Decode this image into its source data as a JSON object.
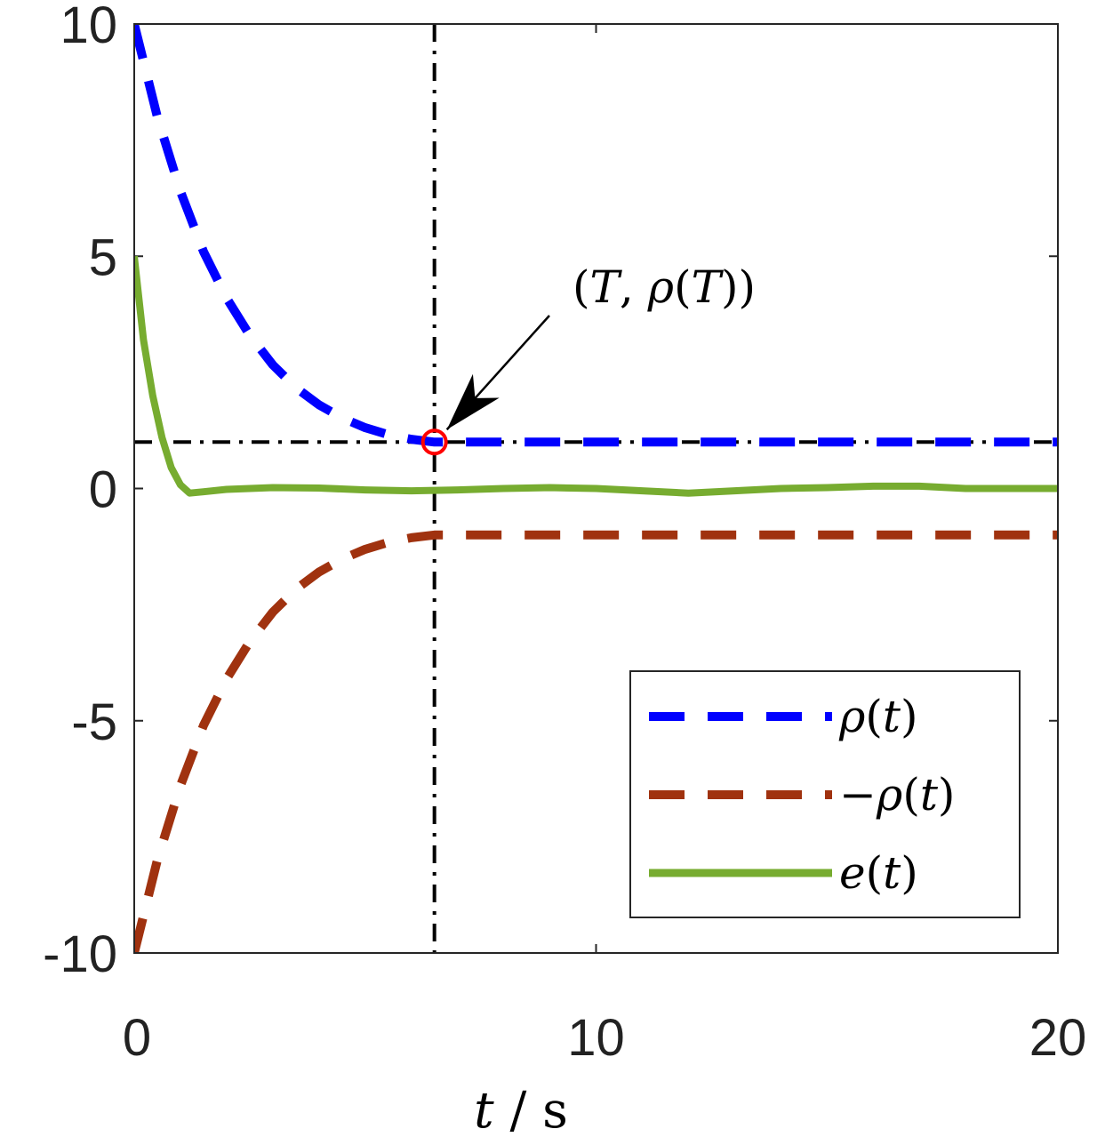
{
  "chart_data": {
    "type": "line",
    "xlabel": {
      "var": "t",
      "unit": "/ s"
    },
    "xlim": [
      0,
      20
    ],
    "ylim": [
      -10,
      10
    ],
    "x_ticks": [
      "0",
      "10",
      "20"
    ],
    "y_ticks": [
      "10",
      "5",
      "0",
      "-5",
      "-10"
    ],
    "grid": false,
    "legend_position": "bottom-right",
    "T": 6.5,
    "rho_T": 1,
    "annotation": {
      "text": "(T, ρ(T))",
      "parts": [
        "(",
        "T",
        ", ",
        "ρ",
        "(",
        "T",
        "))"
      ]
    },
    "series": [
      {
        "name": "ρ(t)",
        "label_parts": [
          "ρ",
          "(",
          "t",
          ")"
        ],
        "color": "#0000ff",
        "style": "dashed",
        "x": [
          0,
          0.5,
          1,
          1.5,
          2,
          2.5,
          3,
          3.5,
          4,
          4.5,
          5,
          5.5,
          6,
          6.5,
          7,
          8,
          10,
          12,
          14,
          16,
          18,
          20
        ],
        "y": [
          10,
          8.0,
          6.4,
          5.1,
          4.1,
          3.3,
          2.66,
          2.17,
          1.8,
          1.52,
          1.31,
          1.16,
          1.06,
          1.0,
          1.0,
          1.0,
          1.0,
          1.0,
          1.0,
          1.0,
          1.0,
          1.0
        ]
      },
      {
        "name": "−ρ(t)",
        "label_parts": [
          "−",
          "ρ",
          "(",
          "t",
          ")"
        ],
        "color": "#a0320f",
        "style": "dashed",
        "x": [
          0,
          0.5,
          1,
          1.5,
          2,
          2.5,
          3,
          3.5,
          4,
          4.5,
          5,
          5.5,
          6,
          6.5,
          7,
          8,
          10,
          12,
          14,
          16,
          18,
          20
        ],
        "y": [
          -10,
          -8.0,
          -6.4,
          -5.1,
          -4.1,
          -3.3,
          -2.66,
          -2.17,
          -1.8,
          -1.52,
          -1.31,
          -1.16,
          -1.06,
          -1.0,
          -1.0,
          -1.0,
          -1.0,
          -1.0,
          -1.0,
          -1.0,
          -1.0,
          -1.0
        ]
      },
      {
        "name": "e(t)",
        "label_parts": [
          "e",
          "(",
          "t",
          ")"
        ],
        "color": "#77ac30",
        "style": "solid",
        "x": [
          0,
          0.2,
          0.4,
          0.6,
          0.8,
          1.0,
          1.2,
          1.5,
          2,
          3,
          4,
          5,
          6,
          7,
          8,
          9,
          10,
          11,
          12,
          13,
          14,
          15,
          16,
          17,
          18,
          19,
          20
        ],
        "y": [
          5.0,
          3.2,
          2.0,
          1.1,
          0.45,
          0.08,
          -0.1,
          -0.07,
          -0.02,
          0.02,
          0.01,
          -0.03,
          -0.05,
          -0.03,
          0.0,
          0.02,
          0.0,
          -0.05,
          -0.1,
          -0.05,
          0.0,
          0.02,
          0.05,
          0.05,
          0.0,
          0.0,
          0.0
        ]
      }
    ]
  }
}
